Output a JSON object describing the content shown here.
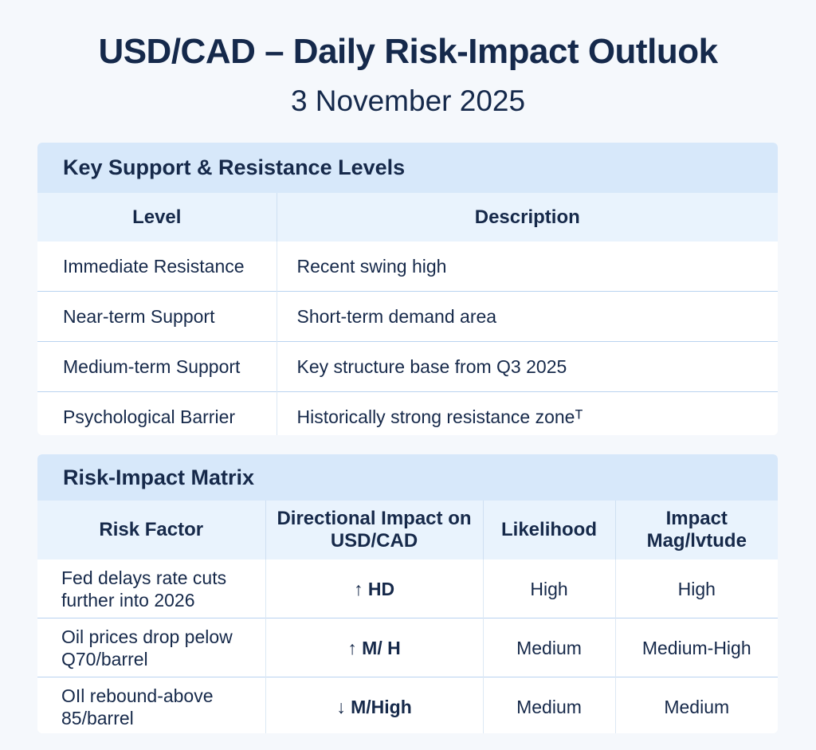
{
  "header": {
    "title": "USD/CAD – Daily Risk-Impact Outluok",
    "date": "3 November 2025"
  },
  "levels": {
    "section_title": "Key Support & Resistance Levels",
    "columns": [
      "Level",
      "Description"
    ],
    "rows": [
      [
        "Immediate Resistance",
        "Recent swing high"
      ],
      [
        "Near-term Support",
        "Short-term demand area"
      ],
      [
        "Medium-term Support",
        "Key structure base from Q3 2025"
      ],
      [
        "Psychological Barrier",
        "Historically strong resistance zoneᵀ"
      ]
    ]
  },
  "matrix": {
    "section_title": "Risk-Impact Matrix",
    "columns": [
      "Risk Factor",
      "Directional Impact on USD/CAD",
      "Likelihood",
      "Impact Mag/lvtude"
    ],
    "rows": [
      [
        "Fed delays rate cuts further into 2026",
        "↑ HD",
        "High",
        "High"
      ],
      [
        "Oil prices drop pelow Q70/barrel",
        "↑ M/ H",
        "Medium",
        "Medium-High"
      ],
      [
        "OIl rebound-above 85/barrel",
        "↓ M/High",
        "Medium",
        "Medium"
      ]
    ]
  },
  "colors": {
    "text": "#15294b",
    "band": "#d7e8fa",
    "header_row": "#e9f3fd",
    "row_divider": "#b9d3f0"
  }
}
